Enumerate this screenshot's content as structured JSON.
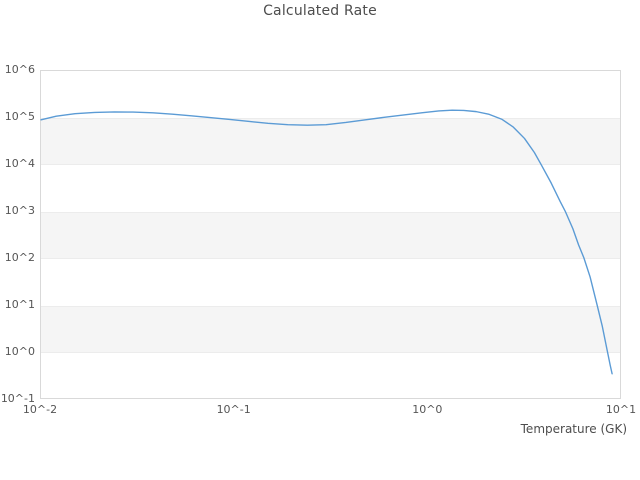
{
  "colors": {
    "line": "#5b9bd5",
    "band_fill": "#f5f5f5",
    "band_edge": "#ececec",
    "plot_border": "#d9d9d9",
    "tick_text": "#555555",
    "title_text": "#4d4d4d"
  },
  "chart_data": {
    "type": "line",
    "title": "Calculated Rate",
    "xlabel": "Temperature (GK)",
    "ylabel": "",
    "x_scale": "log",
    "y_scale": "log",
    "xlim": [
      0.01,
      10
    ],
    "ylim": [
      0.1,
      1000000
    ],
    "x_tick_labels": [
      "10^-2",
      "10^-1",
      "10^0",
      "10^1"
    ],
    "y_tick_labels": [
      "10^6",
      "10^5",
      "10^4",
      "10^3",
      "10^2",
      "10^1",
      "10^0",
      "10^-1"
    ],
    "grid": "alternating-horizontal-bands",
    "grid_bands_y": [
      [
        100000,
        10000
      ],
      [
        1000,
        100
      ],
      [
        10,
        1
      ]
    ],
    "legend": "none",
    "series": [
      {
        "name": "calculated-rate",
        "x": [
          0.01,
          0.012,
          0.015,
          0.019,
          0.024,
          0.03,
          0.038,
          0.048,
          0.06,
          0.075,
          0.095,
          0.12,
          0.15,
          0.19,
          0.24,
          0.3,
          0.38,
          0.48,
          0.6,
          0.75,
          0.95,
          1.15,
          1.35,
          1.55,
          1.8,
          2.1,
          2.45,
          2.8,
          3.2,
          3.6,
          3.9,
          4.4,
          4.9,
          5.2,
          5.7,
          6.1,
          6.5,
          7.0,
          7.6,
          8.1,
          8.6,
          8.9,
          9.1
        ],
        "y": [
          90000,
          108000,
          122000,
          130000,
          133000,
          132000,
          127000,
          119000,
          110000,
          101000,
          92000,
          83000,
          76000,
          71000,
          69000,
          71000,
          79000,
          90000,
          102000,
          114000,
          128000,
          140000,
          145000,
          143000,
          135000,
          118000,
          92000,
          63000,
          36000,
          18000,
          10000,
          4000,
          1600,
          1000,
          420,
          190,
          100,
          39,
          10,
          3.4,
          1.0,
          0.5,
          0.33
        ]
      }
    ]
  }
}
